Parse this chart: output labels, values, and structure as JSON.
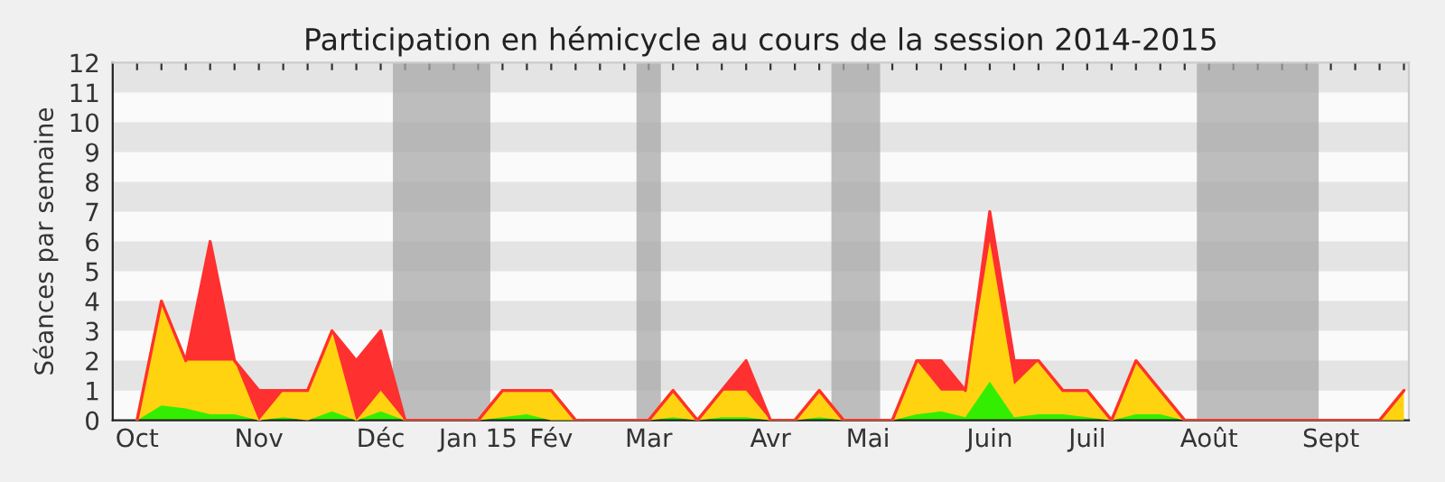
{
  "chart_data": {
    "type": "area",
    "stacked": true,
    "title": "Participation en hémicycle au cours de la session 2014-2015",
    "ylabel": "Séances par semaine",
    "x": [
      "2014-10-05",
      "2014-10-12",
      "2014-10-19",
      "2014-10-26",
      "2014-11-02",
      "2014-11-09",
      "2014-11-16",
      "2014-11-23",
      "2014-11-30",
      "2014-12-07",
      "2014-12-14",
      "2014-12-21",
      "2014-12-28",
      "2015-01-04",
      "2015-01-11",
      "2015-01-18",
      "2015-01-25",
      "2015-02-01",
      "2015-02-08",
      "2015-02-15",
      "2015-02-22",
      "2015-03-01",
      "2015-03-08",
      "2015-03-15",
      "2015-03-22",
      "2015-03-29",
      "2015-04-05",
      "2015-04-12",
      "2015-04-19",
      "2015-04-26",
      "2015-05-03",
      "2015-05-10",
      "2015-05-17",
      "2015-05-24",
      "2015-05-31",
      "2015-06-07",
      "2015-06-14",
      "2015-06-21",
      "2015-06-28",
      "2015-07-05",
      "2015-07-12",
      "2015-07-19",
      "2015-07-26",
      "2015-08-02",
      "2015-08-09",
      "2015-08-16",
      "2015-08-23",
      "2015-08-30",
      "2015-09-06",
      "2015-09-13",
      "2015-09-20",
      "2015-09-27",
      "2015-10-04"
    ],
    "series": [
      {
        "color": "#33ee00",
        "values": [
          0,
          0.5,
          0.4,
          0.2,
          0.2,
          0,
          0.1,
          0,
          0.3,
          0,
          0.3,
          0,
          0,
          0,
          0,
          0.1,
          0.2,
          0,
          0,
          0,
          0,
          0,
          0.1,
          0,
          0.1,
          0.1,
          0,
          0,
          0.1,
          0,
          0,
          0,
          0.2,
          0.3,
          0.1,
          1.3,
          0.1,
          0.2,
          0.2,
          0.1,
          0,
          0.2,
          0.2,
          0,
          0,
          0,
          0,
          0,
          0,
          0,
          0,
          0,
          0
        ]
      },
      {
        "color": "#ffd30f",
        "values": [
          0,
          3.5,
          1.6,
          1.8,
          1.8,
          0,
          0.9,
          1,
          2.7,
          0,
          0.7,
          0,
          0,
          0,
          0,
          0.9,
          0.8,
          1,
          0,
          0,
          0,
          0,
          0.9,
          0,
          0.9,
          0.9,
          0,
          0,
          0.9,
          0,
          0,
          0,
          1.8,
          0.7,
          0.9,
          4.7,
          1.1,
          1.8,
          0.8,
          0.9,
          0,
          1.8,
          0.8,
          0,
          0,
          0,
          0,
          0,
          0,
          0,
          0,
          0,
          1
        ]
      },
      {
        "color": "#ff3030",
        "values": [
          0,
          0,
          0,
          4,
          0,
          1,
          0,
          0,
          0,
          2,
          2,
          0,
          0,
          0,
          0,
          0,
          0,
          0,
          0,
          0,
          0,
          0,
          0,
          0,
          0,
          1,
          0,
          0,
          0,
          0,
          0,
          0,
          0,
          1,
          0,
          1,
          0.8,
          0,
          0,
          0,
          0,
          0,
          0,
          0,
          0,
          0,
          0,
          0,
          0,
          0,
          0,
          0,
          0
        ]
      }
    ],
    "xlim": [
      "2014-09-28",
      "2015-10-05T10:00"
    ],
    "xticks": [
      {
        "value": "2014-10-05",
        "label": "Oct"
      },
      {
        "value": "2014-10-12",
        "label": null
      },
      {
        "value": "2014-10-19",
        "label": null
      },
      {
        "value": "2014-10-26",
        "label": null
      },
      {
        "value": "2014-11-02",
        "label": null
      },
      {
        "value": "2014-11-09",
        "label": "Nov"
      },
      {
        "value": "2014-11-16",
        "label": null
      },
      {
        "value": "2014-11-23",
        "label": null
      },
      {
        "value": "2014-11-30",
        "label": null
      },
      {
        "value": "2014-12-07",
        "label": null
      },
      {
        "value": "2014-12-14",
        "label": "Déc"
      },
      {
        "value": "2014-12-21",
        "label": null
      },
      {
        "value": "2014-12-28",
        "label": null
      },
      {
        "value": "2015-01-04",
        "label": null
      },
      {
        "value": "2015-01-11",
        "label": "Jan 15"
      },
      {
        "value": "2015-01-18",
        "label": null
      },
      {
        "value": "2015-01-25",
        "label": null
      },
      {
        "value": "2015-02-01",
        "label": "Fév"
      },
      {
        "value": "2015-02-08",
        "label": null
      },
      {
        "value": "2015-02-15",
        "label": null
      },
      {
        "value": "2015-02-22",
        "label": null
      },
      {
        "value": "2015-03-01",
        "label": "Mar"
      },
      {
        "value": "2015-03-08",
        "label": null
      },
      {
        "value": "2015-03-15",
        "label": null
      },
      {
        "value": "2015-03-22",
        "label": null
      },
      {
        "value": "2015-03-29",
        "label": null
      },
      {
        "value": "2015-04-05",
        "label": "Avr"
      },
      {
        "value": "2015-04-12",
        "label": null
      },
      {
        "value": "2015-04-19",
        "label": null
      },
      {
        "value": "2015-04-26",
        "label": null
      },
      {
        "value": "2015-05-03",
        "label": "Mai"
      },
      {
        "value": "2015-05-10",
        "label": null
      },
      {
        "value": "2015-05-17",
        "label": null
      },
      {
        "value": "2015-05-24",
        "label": null
      },
      {
        "value": "2015-05-31",
        "label": null
      },
      {
        "value": "2015-06-07",
        "label": "Juin"
      },
      {
        "value": "2015-06-14",
        "label": null
      },
      {
        "value": "2015-06-21",
        "label": null
      },
      {
        "value": "2015-06-28",
        "label": null
      },
      {
        "value": "2015-07-05",
        "label": "Juil"
      },
      {
        "value": "2015-07-12",
        "label": null
      },
      {
        "value": "2015-07-19",
        "label": null
      },
      {
        "value": "2015-07-26",
        "label": null
      },
      {
        "value": "2015-08-02",
        "label": null
      },
      {
        "value": "2015-08-09",
        "label": "Août"
      },
      {
        "value": "2015-08-16",
        "label": null
      },
      {
        "value": "2015-08-23",
        "label": null
      },
      {
        "value": "2015-08-30",
        "label": null
      },
      {
        "value": "2015-09-06",
        "label": null
      },
      {
        "value": "2015-09-13",
        "label": "Sept"
      },
      {
        "value": "2015-09-20",
        "label": null
      },
      {
        "value": "2015-09-27",
        "label": null
      },
      {
        "value": "2015-10-04",
        "label": null
      }
    ],
    "ylim": [
      0,
      12
    ],
    "yticks": [
      0,
      1,
      2,
      3,
      4,
      5,
      6,
      7,
      8,
      9,
      10,
      11,
      12
    ],
    "bands": [
      {
        "axis": "x",
        "from": "2014-12-17T12:00",
        "to": "2015-01-14T12:00",
        "color": "#a8a8a8"
      },
      {
        "axis": "x",
        "from": "2015-02-25T12:00",
        "to": "2015-03-04T12:00",
        "color": "#a8a8a8"
      },
      {
        "axis": "x",
        "from": "2015-04-22T12:00",
        "to": "2015-05-06T12:00",
        "color": "#a8a8a8"
      },
      {
        "axis": "x",
        "from": "2015-08-05T12:00",
        "to": "2015-09-09T12:00",
        "color": "#a8a8a8"
      }
    ],
    "legend": false
  }
}
